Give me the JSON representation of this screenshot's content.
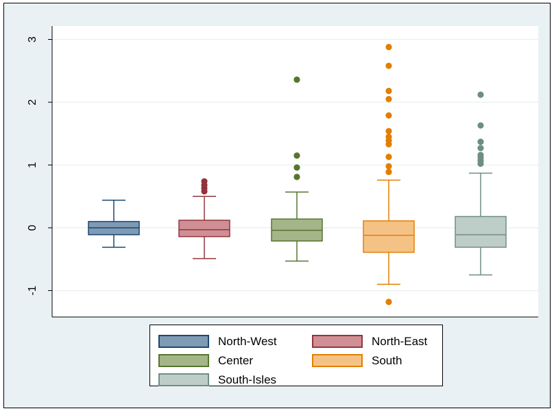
{
  "chart_data": {
    "type": "box",
    "title": "",
    "xlabel": "",
    "ylabel": "",
    "ylim": [
      -1.4,
      3.25
    ],
    "yticks": [
      -1,
      0,
      1,
      2,
      3
    ],
    "ytick_labels": [
      "-1",
      "0",
      "1",
      "2",
      "3"
    ],
    "grid": true,
    "legend_position": "bottom",
    "series": [
      {
        "name": "North-West",
        "fill": "#7f9ab5",
        "stroke": "#1a476f",
        "whisker_low": -0.31,
        "q1": -0.11,
        "median": 0.0,
        "q3": 0.1,
        "whisker_high": 0.44,
        "outliers": []
      },
      {
        "name": "North-East",
        "fill": "#cf8f94",
        "stroke": "#90353b",
        "whisker_low": -0.49,
        "q1": -0.14,
        "median": -0.03,
        "q3": 0.12,
        "whisker_high": 0.5,
        "outliers": [
          0.58,
          0.63,
          0.68,
          0.74
        ]
      },
      {
        "name": "Center",
        "fill": "#a5b58a",
        "stroke": "#55752f",
        "whisker_low": -0.53,
        "q1": -0.21,
        "median": -0.04,
        "q3": 0.14,
        "whisker_high": 0.57,
        "outliers": [
          0.81,
          0.96,
          1.15,
          2.36
        ]
      },
      {
        "name": "South",
        "fill": "#f5c285",
        "stroke": "#e37e00",
        "whisker_low": -0.9,
        "q1": -0.39,
        "median": -0.12,
        "q3": 0.11,
        "whisker_high": 0.76,
        "outliers": [
          -1.18,
          0.89,
          0.98,
          1.13,
          1.33,
          1.39,
          1.45,
          1.54,
          1.79,
          2.05,
          2.18,
          2.58,
          2.88
        ]
      },
      {
        "name": "South-Isles",
        "fill": "#bfcdc9",
        "stroke": "#6e8e84",
        "whisker_low": -0.75,
        "q1": -0.31,
        "median": -0.11,
        "q3": 0.18,
        "whisker_high": 0.87,
        "outliers": [
          1.02,
          1.07,
          1.12,
          1.16,
          1.27,
          1.37,
          1.63,
          2.12
        ]
      }
    ]
  }
}
